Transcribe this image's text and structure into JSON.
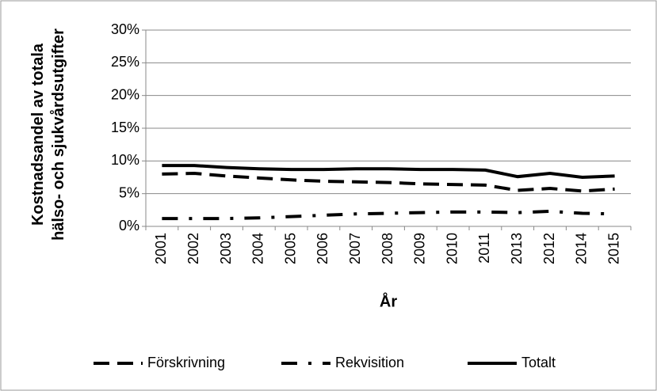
{
  "chart_data": {
    "type": "line",
    "y_label": "Kostnadsandel av totala hälso- och sjukvårdsutgifter",
    "x_label": "År",
    "categories": [
      "2001",
      "2002",
      "2003",
      "2004",
      "2005",
      "2006",
      "2007",
      "2008",
      "2009",
      "2010",
      "2011",
      "2013",
      "2012",
      "2014",
      "2015"
    ],
    "series": [
      {
        "name": "Förskrivning",
        "color": "#000000",
        "dash": "dashed",
        "values": [
          8.0,
          8.1,
          7.7,
          7.4,
          7.1,
          6.9,
          6.8,
          6.7,
          6.5,
          6.4,
          6.3,
          5.5,
          5.8,
          5.4,
          5.7
        ]
      },
      {
        "name": "Rekvisition",
        "color": "#000000",
        "dash": "dashdot",
        "values": [
          1.2,
          1.2,
          1.2,
          1.3,
          1.5,
          1.7,
          1.9,
          2.0,
          2.1,
          2.2,
          2.2,
          2.1,
          2.3,
          2.0,
          1.9
        ]
      },
      {
        "name": "Totalt",
        "color": "#000000",
        "dash": "solid",
        "values": [
          9.3,
          9.3,
          9.0,
          8.8,
          8.7,
          8.7,
          8.8,
          8.8,
          8.7,
          8.7,
          8.6,
          7.6,
          8.1,
          7.5,
          7.7
        ]
      }
    ],
    "ylim": [
      0,
      30
    ],
    "yticks": [
      {
        "value": 0,
        "label": "0%"
      },
      {
        "value": 5,
        "label": "5%"
      },
      {
        "value": 10,
        "label": "10%"
      },
      {
        "value": 15,
        "label": "15%"
      },
      {
        "value": 20,
        "label": "20%"
      },
      {
        "value": 25,
        "label": "25%"
      },
      {
        "value": 30,
        "label": "30%"
      }
    ],
    "grid": true,
    "legend": "bottom"
  }
}
